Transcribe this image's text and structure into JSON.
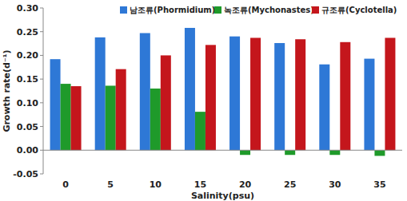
{
  "chart_data": {
    "type": "bar",
    "x_label": "Salinity(psu)",
    "y_label": "Growth rate(d⁻¹)",
    "categories": [
      "0",
      "5",
      "10",
      "15",
      "20",
      "25",
      "30",
      "35"
    ],
    "series": [
      {
        "name": "남조류(Phormidium)",
        "color": "#2e78d6",
        "values": [
          0.192,
          0.238,
          0.247,
          0.258,
          0.24,
          0.226,
          0.181,
          0.193
        ]
      },
      {
        "name": "녹조류(Mychonastes)",
        "color": "#1f9a2a",
        "values": [
          0.14,
          0.136,
          0.13,
          0.081,
          -0.01,
          -0.01,
          -0.01,
          -0.012
        ]
      },
      {
        "name": "규조류(Cyclotella)",
        "color": "#c4161c",
        "values": [
          0.135,
          0.171,
          0.2,
          0.222,
          0.237,
          0.234,
          0.228,
          0.237
        ]
      }
    ],
    "ylim": [
      -0.05,
      0.3
    ],
    "yticks": [
      -0.05,
      {
        "value": 0.0,
        "label": "0.00"
      },
      0.05,
      {
        "value": 0.1,
        "label": "0.10"
      },
      0.15,
      {
        "value": 0.2,
        "label": "0.20"
      },
      0.25,
      {
        "value": 0.3,
        "label": "0.30"
      }
    ],
    "grid": false,
    "legend": "top"
  }
}
